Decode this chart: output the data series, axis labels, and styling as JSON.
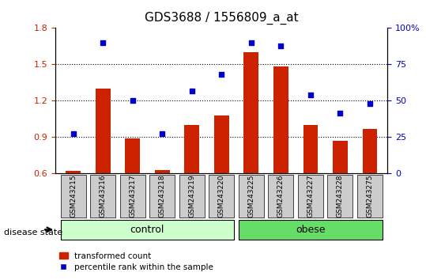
{
  "title": "GDS3688 / 1556809_a_at",
  "categories": [
    "GSM243215",
    "GSM243216",
    "GSM243217",
    "GSM243218",
    "GSM243219",
    "GSM243220",
    "GSM243225",
    "GSM243226",
    "GSM243227",
    "GSM243228",
    "GSM243275"
  ],
  "bar_values": [
    0.62,
    1.3,
    0.89,
    0.63,
    1.0,
    1.08,
    1.6,
    1.48,
    1.0,
    0.87,
    0.97
  ],
  "scatter_values": [
    0.93,
    1.68,
    1.2,
    0.93,
    1.28,
    1.42,
    1.68,
    1.65,
    1.25,
    1.1,
    1.18
  ],
  "bar_color": "#cc2200",
  "scatter_color": "#0000cc",
  "ylim_left": [
    0.6,
    1.8
  ],
  "ylim_right": [
    0,
    100
  ],
  "yticks_left": [
    0.6,
    0.9,
    1.2,
    1.5,
    1.8
  ],
  "yticks_right": [
    0,
    25,
    50,
    75,
    100
  ],
  "ytick_labels_right": [
    "0",
    "25",
    "50",
    "75",
    "100%"
  ],
  "hlines": [
    0.9,
    1.2,
    1.5
  ],
  "group_control": [
    "GSM243215",
    "GSM243216",
    "GSM243217",
    "GSM243218",
    "GSM243219",
    "GSM243220"
  ],
  "group_obese": [
    "GSM243225",
    "GSM243226",
    "GSM243227",
    "GSM243228",
    "GSM243275"
  ],
  "group_control_label": "control",
  "group_obese_label": "obese",
  "disease_state_label": "disease state",
  "legend_bar_label": "transformed count",
  "legend_scatter_label": "percentile rank within the sample",
  "control_color": "#ccffcc",
  "obese_color": "#66dd66",
  "xticklabel_bg": "#cccccc",
  "title_fontsize": 11,
  "tick_fontsize": 8,
  "label_fontsize": 8
}
